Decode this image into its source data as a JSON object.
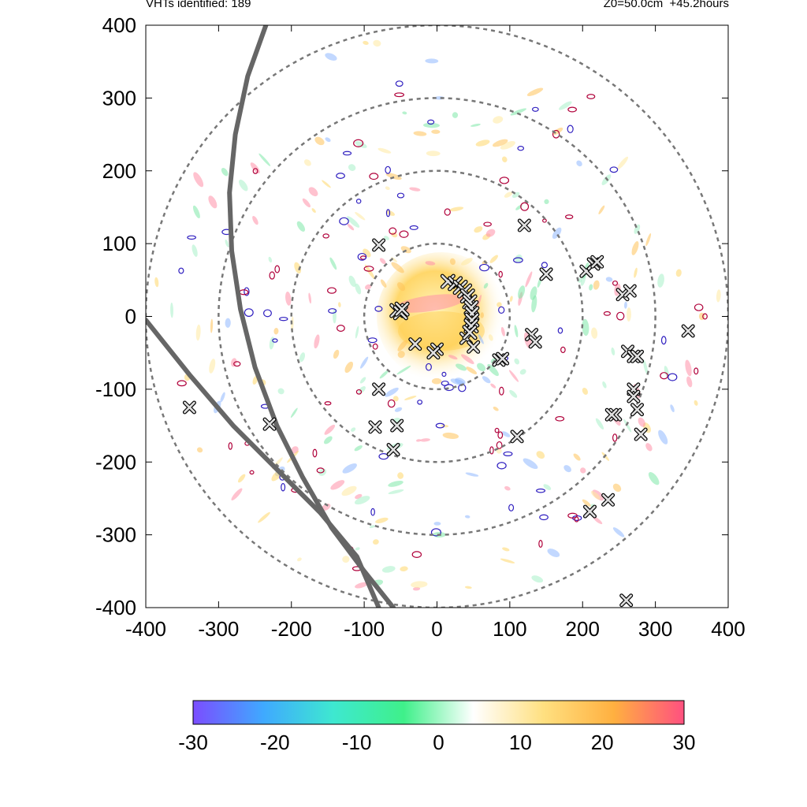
{
  "header": {
    "left": "VHTs identified: 189",
    "right": "Z0=50.0cm  +45.2hours"
  },
  "chart_data": {
    "type": "heatmap",
    "title": "",
    "xlabel": "",
    "ylabel": "",
    "xlim": [
      -400,
      400
    ],
    "ylim": [
      -400,
      400
    ],
    "xticks": [
      "-400",
      "-300",
      "-200",
      "-100",
      "0",
      "100",
      "200",
      "300",
      "400"
    ],
    "yticks": [
      "400",
      "300",
      "200",
      "100",
      "0",
      "-100",
      "-200",
      "-300",
      "-400"
    ],
    "range_rings": [
      100,
      200,
      300,
      400
    ],
    "colorbar": {
      "min": -30,
      "max": 30,
      "ticks": [
        "-30",
        "-20",
        "-10",
        "0",
        "10",
        "20",
        "30"
      ],
      "colors": [
        "#7b4dff",
        "#3fa9ff",
        "#3ee8d0",
        "#3ff08a",
        "#ffffff",
        "#ffe080",
        "#ffb040",
        "#ff5080"
      ]
    },
    "tracks": [
      {
        "points": [
          [
            -235,
            400
          ],
          [
            -260,
            330
          ],
          [
            -277,
            250
          ],
          [
            -285,
            170
          ],
          [
            -282,
            90
          ],
          [
            -270,
            10
          ],
          [
            -250,
            -70
          ],
          [
            -220,
            -150
          ],
          [
            -185,
            -220
          ],
          [
            -145,
            -290
          ],
          [
            -100,
            -350
          ],
          [
            -60,
            -400
          ]
        ]
      },
      {
        "points": [
          [
            -400,
            -5
          ],
          [
            -340,
            -80
          ],
          [
            -280,
            -150
          ],
          [
            -220,
            -210
          ],
          [
            -160,
            -270
          ],
          [
            -110,
            -330
          ],
          [
            -80,
            -400
          ]
        ]
      }
    ],
    "vht_markers": [
      [
        -340,
        -125
      ],
      [
        -230,
        -148
      ],
      [
        -80,
        -100
      ],
      [
        -85,
        -152
      ],
      [
        -55,
        -150
      ],
      [
        -60,
        -183
      ],
      [
        -30,
        -38
      ],
      [
        0,
        -45
      ],
      [
        -5,
        -50
      ],
      [
        40,
        -30
      ],
      [
        50,
        -42
      ],
      [
        85,
        -60
      ],
      [
        90,
        -58
      ],
      [
        110,
        -165
      ],
      [
        130,
        -25
      ],
      [
        135,
        -35
      ],
      [
        150,
        58
      ],
      [
        120,
        125
      ],
      [
        205,
        62
      ],
      [
        215,
        72
      ],
      [
        220,
        75
      ],
      [
        255,
        30
      ],
      [
        265,
        35
      ],
      [
        262,
        -48
      ],
      [
        270,
        -55
      ],
      [
        275,
        -55
      ],
      [
        270,
        -100
      ],
      [
        270,
        -110
      ],
      [
        275,
        -128
      ],
      [
        245,
        -135
      ],
      [
        240,
        -135
      ],
      [
        280,
        -162
      ],
      [
        345,
        -20
      ],
      [
        210,
        -268
      ],
      [
        235,
        -252
      ],
      [
        260,
        -390
      ],
      [
        -80,
        98
      ]
    ],
    "vht_arc_markers": [
      [
        15,
        48
      ],
      [
        25,
        45
      ],
      [
        32,
        40
      ],
      [
        38,
        35
      ],
      [
        42,
        28
      ],
      [
        45,
        20
      ],
      [
        47,
        12
      ],
      [
        48,
        4
      ],
      [
        48,
        -5
      ],
      [
        47,
        -13
      ],
      [
        45,
        -22
      ],
      [
        -55,
        8
      ],
      [
        -50,
        5
      ],
      [
        -48,
        10
      ]
    ]
  }
}
